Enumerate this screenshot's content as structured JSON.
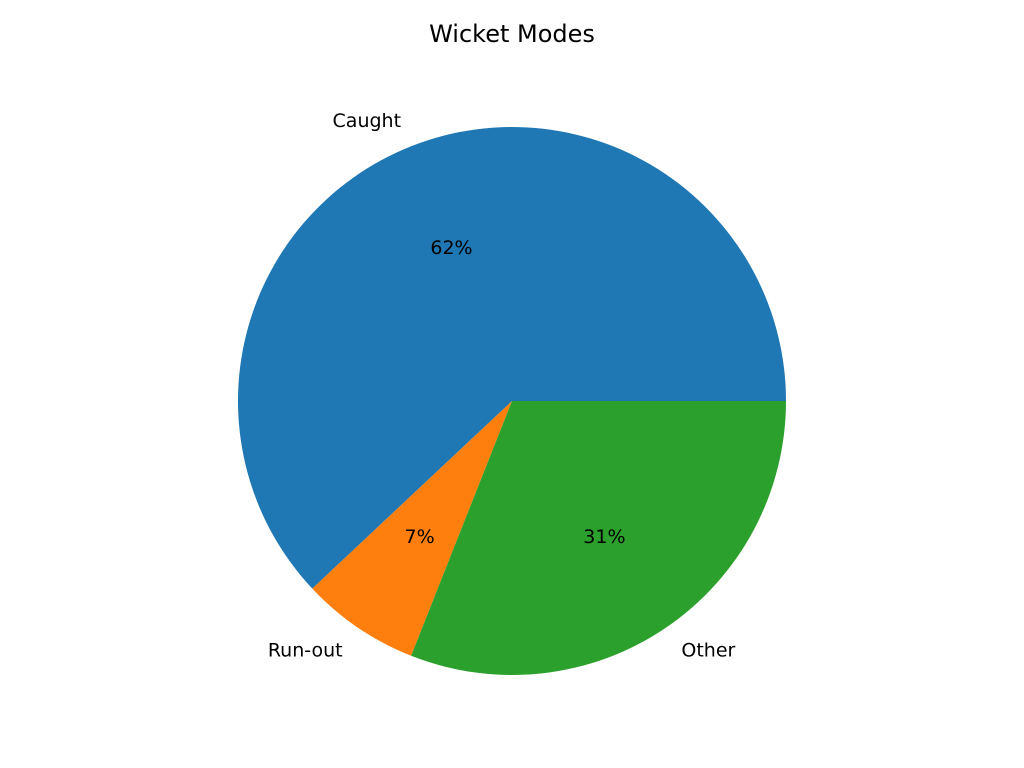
{
  "chart_data": {
    "type": "pie",
    "title": "Wicket Modes",
    "slices": [
      {
        "label": "Caught",
        "value": 62,
        "pct_label": "62%",
        "color": "#1f77b4"
      },
      {
        "label": "Run-out",
        "value": 7,
        "pct_label": "7%",
        "color": "#ff7f0e"
      },
      {
        "label": "Other",
        "value": 31,
        "pct_label": "31%",
        "color": "#2ca02c"
      }
    ],
    "start_angle_deg": 0,
    "direction": "counterclockwise"
  }
}
